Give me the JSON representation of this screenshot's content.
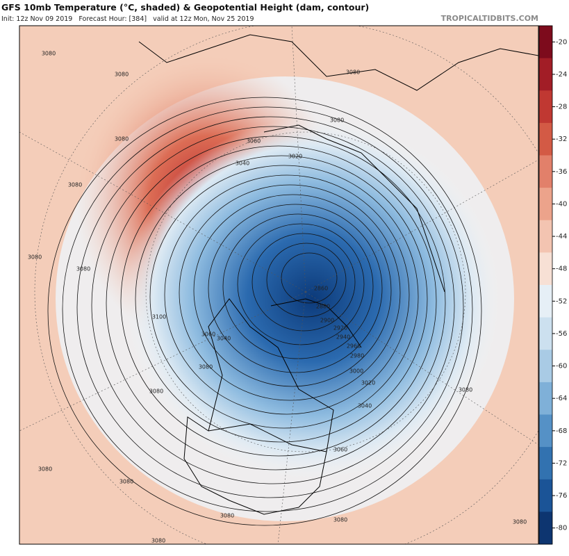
{
  "header": {
    "title": "GFS 10mb Temperature (°C, shaded) & Geopotential Height (dam, contour)",
    "subtitle": "Init: 12z Nov 09 2019   Forecast Hour: [384]   valid at 12z Mon, Nov 25 2019",
    "brand": "TROPICALTIDBITS.COM"
  },
  "colorbar": {
    "ticks": [
      -20,
      -24,
      -28,
      -32,
      -36,
      -40,
      -44,
      -48,
      -52,
      -56,
      -60,
      -64,
      -68,
      -72,
      -76,
      -80
    ],
    "colors": [
      "#7d0b1c",
      "#a21d26",
      "#c03832",
      "#d35a45",
      "#e2806a",
      "#eca38b",
      "#f3c4b1",
      "#f7e0d5",
      "#e6eff6",
      "#cce0ef",
      "#a9cbe5",
      "#7fb0d8",
      "#5591c6",
      "#3272b0",
      "#1b5497",
      "#0d3570"
    ]
  },
  "contour_labels": [
    "3080",
    "3080",
    "3080",
    "3080",
    "3080",
    "3080",
    "3080",
    "3080",
    "3080",
    "3080",
    "3080",
    "3080",
    "3080",
    "3080",
    "3080",
    "3080",
    "3060",
    "3060",
    "3060",
    "3040",
    "3040",
    "3040",
    "3020",
    "3020",
    "3100",
    "3000",
    "2980",
    "2960",
    "2940",
    "2920",
    "2900",
    "2880",
    "2860",
    "3080"
  ]
}
